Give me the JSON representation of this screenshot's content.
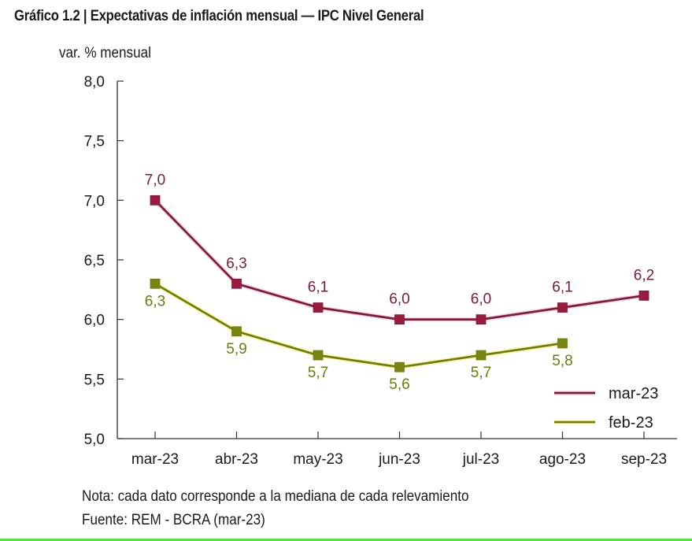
{
  "chart_data": {
    "type": "line",
    "title": "Gráfico 1.2 | Expectativas de inflación mensual — IPC Nivel General",
    "ylabel": "var. % mensual",
    "xlabel": "",
    "categories": [
      "mar-23",
      "abr-23",
      "may-23",
      "jun-23",
      "jul-23",
      "ago-23",
      "sep-23"
    ],
    "ylim": [
      5.0,
      8.0
    ],
    "yticks": [
      5.0,
      5.5,
      6.0,
      6.5,
      7.0,
      7.5,
      8.0
    ],
    "ytick_labels": [
      "5,0",
      "5,5",
      "6,0",
      "6,5",
      "7,0",
      "7,5",
      "8,0"
    ],
    "grid": false,
    "legend_position": "bottom-right",
    "series": [
      {
        "name": "mar-23",
        "color": "#7a1a3a",
        "marker_color": "#9b1b3e",
        "glow": "#f5a8c0",
        "values": [
          7.0,
          6.3,
          6.1,
          6.0,
          6.0,
          6.1,
          6.2
        ],
        "labels": [
          "7,0",
          "6,3",
          "6,1",
          "6,0",
          "6,0",
          "6,1",
          "6,2"
        ],
        "label_position": "above"
      },
      {
        "name": "feb-23",
        "color": "#6e7a10",
        "marker_color": "#7a8410",
        "glow": "#f2f25a",
        "values": [
          6.3,
          5.9,
          5.7,
          5.6,
          5.7,
          5.8,
          null
        ],
        "labels": [
          "6,3",
          "5,9",
          "5,7",
          "5,6",
          "5,7",
          "5,8",
          null
        ],
        "label_position": "below"
      }
    ]
  },
  "header": {
    "title": "Gráfico 1.2 | Expectativas de inflación mensual — IPC Nivel General",
    "ylabel": "var. % mensual"
  },
  "footer": {
    "note": "Nota: cada dato corresponde a la mediana de cada relevamiento",
    "source": "Fuente: REM - BCRA (mar-23)"
  },
  "colors": {
    "bottom_bar": "#5fe04a"
  }
}
